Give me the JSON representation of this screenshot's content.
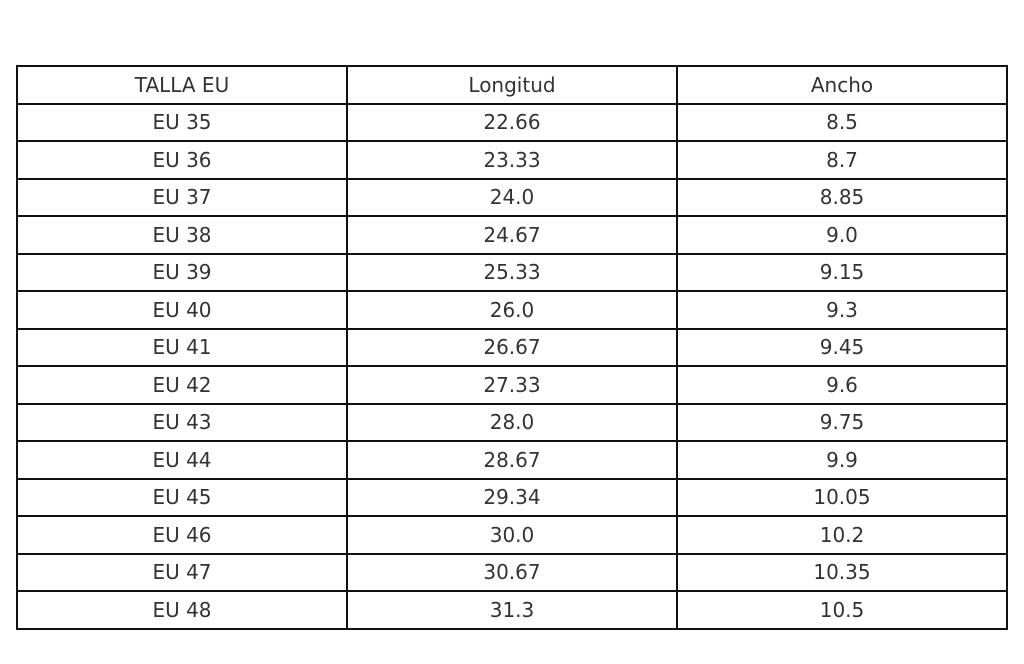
{
  "table": {
    "header": [
      "TALLA EU",
      "Longitud",
      "Ancho"
    ],
    "rows": [
      [
        "EU 35",
        "22.66",
        "8.5"
      ],
      [
        "EU 36",
        "23.33",
        "8.7"
      ],
      [
        "EU 37",
        "24.0",
        "8.85"
      ],
      [
        "EU 38",
        "24.67",
        "9.0"
      ],
      [
        "EU 39",
        "25.33",
        "9.15"
      ],
      [
        "EU 40",
        "26.0",
        "9.3"
      ],
      [
        "EU 41",
        "26.67",
        "9.45"
      ],
      [
        "EU 42",
        "27.33",
        "9.6"
      ],
      [
        "EU 43",
        "28.0",
        "9.75"
      ],
      [
        "EU 44",
        "28.67",
        "9.9"
      ],
      [
        "EU 45",
        "29.34",
        "10.05"
      ],
      [
        "EU 46",
        "30.0",
        "10.2"
      ],
      [
        "EU 47",
        "30.67",
        "10.35"
      ],
      [
        "EU 48",
        "31.3",
        "10.5"
      ]
    ]
  }
}
